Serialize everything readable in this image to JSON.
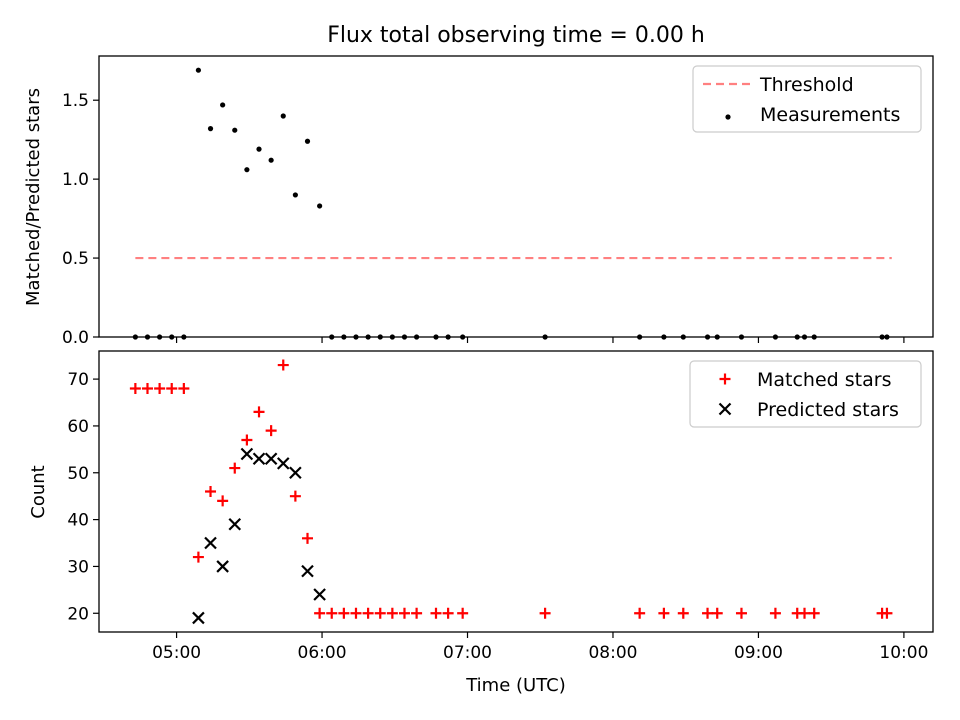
{
  "chart_data": [
    {
      "type": "scatter",
      "title": "Flux total observing time = 0.00 h",
      "xlabel": "",
      "ylabel": "Matched/Predicted stars",
      "xlim": [
        "04:28",
        "10:12"
      ],
      "ylim": [
        0,
        1.78
      ],
      "grid": false,
      "legend_position": "top-right",
      "x_ticks": [
        "05:00",
        "06:00",
        "07:00",
        "08:00",
        "09:00",
        "10:00"
      ],
      "y_ticks": [
        "0.0",
        "0.5",
        "1.0",
        "1.5"
      ],
      "series": [
        {
          "name": "Threshold",
          "kind": "dashed-line",
          "color": "#ff8080",
          "x": [
            "04:43",
            "09:55"
          ],
          "y": [
            0.5,
            0.5
          ]
        },
        {
          "name": "Measurements",
          "kind": "points",
          "color": "#000000",
          "x": [
            "04:43",
            "04:48",
            "04:53",
            "04:58",
            "05:03",
            "05:09",
            "05:14",
            "05:19",
            "05:24",
            "05:29",
            "05:34",
            "05:39",
            "05:44",
            "05:49",
            "05:54",
            "05:59",
            "06:04",
            "06:09",
            "06:14",
            "06:19",
            "06:24",
            "06:29",
            "06:34",
            "06:39",
            "06:47",
            "06:52",
            "06:58",
            "07:32",
            "08:11",
            "08:21",
            "08:29",
            "08:39",
            "08:43",
            "08:53",
            "09:07",
            "09:16",
            "09:19",
            "09:23",
            "09:51",
            "09:53"
          ],
          "y": [
            0,
            0,
            0,
            0,
            0,
            1.69,
            1.32,
            1.47,
            1.31,
            1.06,
            1.19,
            1.12,
            1.4,
            0.9,
            1.24,
            0.83,
            0,
            0,
            0,
            0,
            0,
            0,
            0,
            0,
            0,
            0,
            0,
            0,
            0,
            0,
            0,
            0,
            0,
            0,
            0,
            0,
            0,
            0,
            0,
            0
          ]
        }
      ]
    },
    {
      "type": "scatter",
      "title": "",
      "xlabel": "Time (UTC)",
      "ylabel": "Count",
      "xlim": [
        "04:28",
        "10:12"
      ],
      "ylim": [
        16,
        76
      ],
      "grid": false,
      "legend_position": "top-right",
      "x_ticks": [
        "05:00",
        "06:00",
        "07:00",
        "08:00",
        "09:00",
        "10:00"
      ],
      "y_ticks": [
        "20",
        "30",
        "40",
        "50",
        "60",
        "70"
      ],
      "series": [
        {
          "name": "Matched stars",
          "kind": "plus",
          "color": "#ff0000",
          "x": [
            "04:43",
            "04:48",
            "04:53",
            "04:58",
            "05:03",
            "05:09",
            "05:14",
            "05:19",
            "05:24",
            "05:29",
            "05:34",
            "05:39",
            "05:44",
            "05:49",
            "05:54",
            "05:59",
            "06:04",
            "06:09",
            "06:14",
            "06:19",
            "06:24",
            "06:29",
            "06:34",
            "06:39",
            "06:47",
            "06:52",
            "06:58",
            "07:32",
            "08:11",
            "08:21",
            "08:29",
            "08:39",
            "08:43",
            "08:53",
            "09:07",
            "09:16",
            "09:19",
            "09:23",
            "09:51",
            "09:53"
          ],
          "y": [
            68,
            68,
            68,
            68,
            68,
            32,
            46,
            44,
            51,
            57,
            63,
            59,
            73,
            45,
            36,
            20,
            20,
            20,
            20,
            20,
            20,
            20,
            20,
            20,
            20,
            20,
            20,
            20,
            20,
            20,
            20,
            20,
            20,
            20,
            20,
            20,
            20,
            20,
            20,
            20
          ]
        },
        {
          "name": "Predicted stars",
          "kind": "cross",
          "color": "#000000",
          "x": [
            "05:09",
            "05:14",
            "05:19",
            "05:24",
            "05:29",
            "05:34",
            "05:39",
            "05:44",
            "05:49",
            "05:54",
            "05:59"
          ],
          "y": [
            19,
            35,
            30,
            39,
            54,
            53,
            53,
            52,
            50,
            29,
            24
          ]
        }
      ]
    }
  ]
}
